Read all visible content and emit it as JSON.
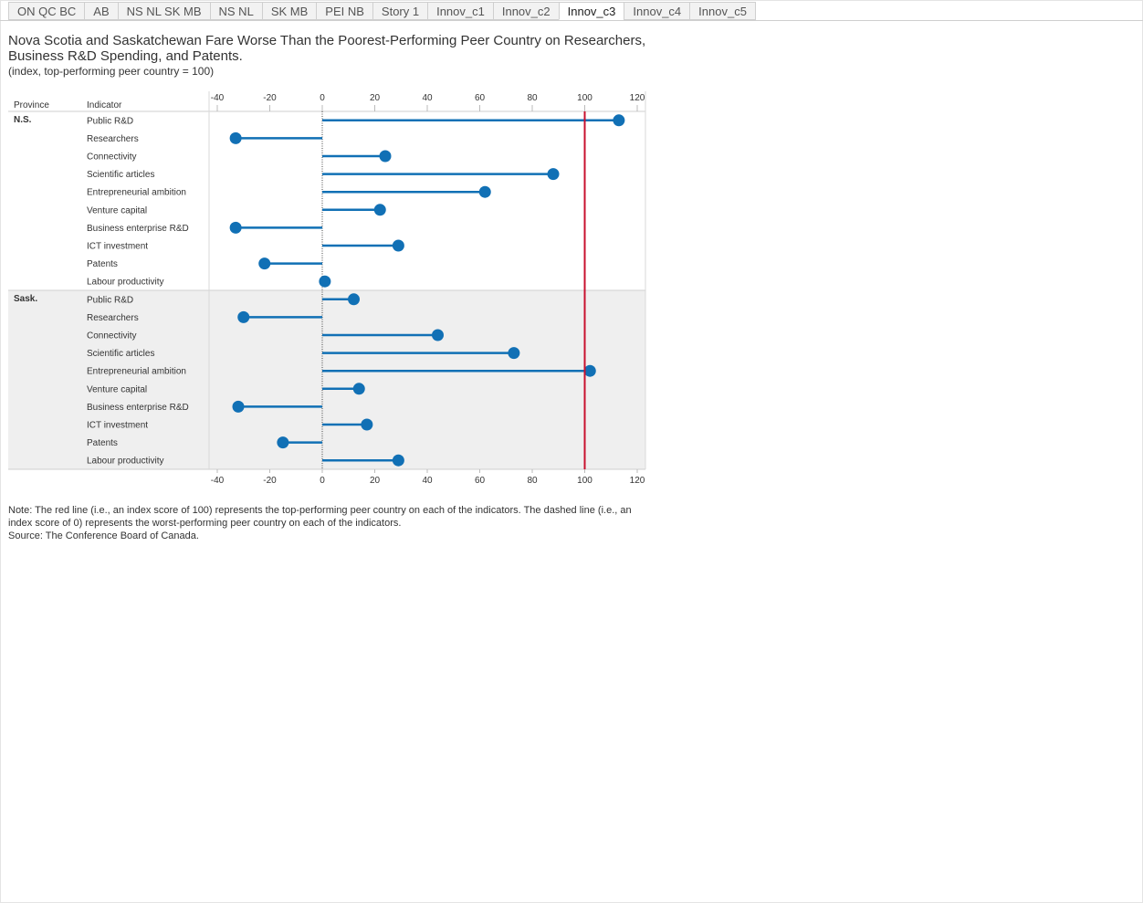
{
  "tabs": [
    "ON QC BC",
    "AB",
    "NS NL SK MB",
    "NS NL",
    "SK MB",
    "PEI NB",
    "Story 1",
    "Innov_c1",
    "Innov_c2",
    "Innov_c3",
    "Innov_c4",
    "Innov_c5"
  ],
  "active_tab": "Innov_c3",
  "title": "Nova Scotia and Saskatchewan Fare Worse Than the Poorest-Performing Peer Country on Researchers, Business R&D Spending, and Patents.",
  "subtitle": "(index, top-performing peer country = 100)",
  "note": "Note: The red line (i.e., an index score of 100) represents the top-performing peer country on each of the indicators. The dashed line (i.e., an index score of 0) represents the worst-performing peer country on each of the indicators.",
  "source": "Source: The Conference Board of Canada.",
  "colors": {
    "series": "#1170b5",
    "reference": "#c8102e",
    "band": "#efefef"
  },
  "chart_data": {
    "type": "dot-plot",
    "row_headers": [
      "Province",
      "Indicator"
    ],
    "x_ticks": [
      -40,
      -20,
      0,
      20,
      40,
      60,
      80,
      100,
      120
    ],
    "xlim": [
      -42,
      124
    ],
    "reference_line": 100,
    "zero_line": 0,
    "groups": [
      {
        "province": "N.S.",
        "indicators": [
          "Public R&D",
          "Researchers",
          "Connectivity",
          "Scientific articles",
          "Entrepreneurial ambition",
          "Venture capital",
          "Business enterprise R&D",
          "ICT investment",
          "Patents",
          "Labour productivity"
        ],
        "values": [
          113,
          -33,
          24,
          88,
          62,
          22,
          -33,
          29,
          -22,
          1
        ]
      },
      {
        "province": "Sask.",
        "indicators": [
          "Public R&D",
          "Researchers",
          "Connectivity",
          "Scientific articles",
          "Entrepreneurial ambition",
          "Venture capital",
          "Business enterprise R&D",
          "ICT investment",
          "Patents",
          "Labour productivity"
        ],
        "values": [
          12,
          -30,
          44,
          73,
          102,
          14,
          -32,
          17,
          -15,
          29
        ]
      }
    ]
  }
}
